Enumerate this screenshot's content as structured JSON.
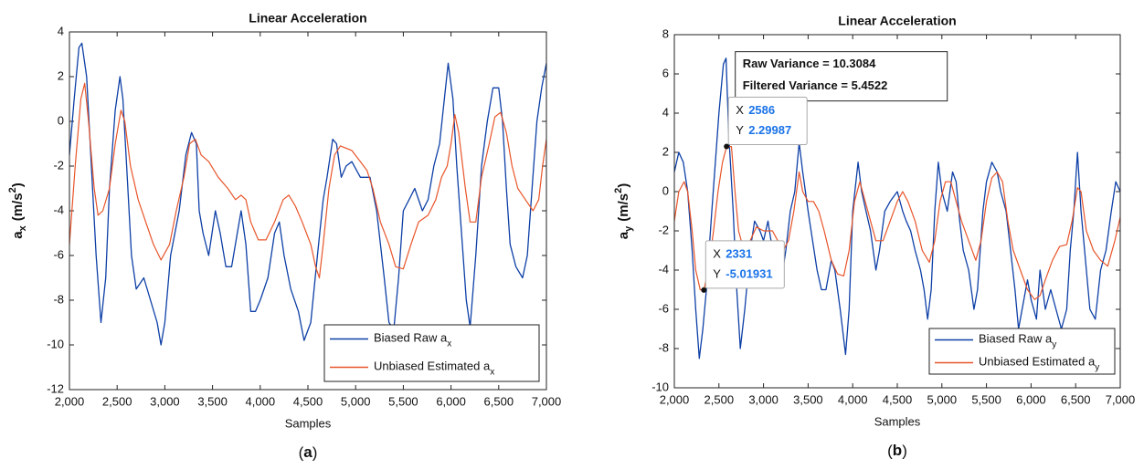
{
  "chart_data": [
    {
      "type": "line",
      "title": "Linear Acceleration",
      "xlabel": "Samples",
      "caption": "a",
      "ylabel": {
        "text": "a",
        "sub": "x",
        "unit": "(m/s",
        "sup": "2",
        "close": ")"
      },
      "xlim": [
        2000,
        7000
      ],
      "xticks": [
        {
          "value": 2000,
          "label": "2,000"
        },
        {
          "value": 2500,
          "label": "2,500"
        },
        {
          "value": 3000,
          "label": "3,000"
        },
        {
          "value": 3500,
          "label": "3,500"
        },
        {
          "value": 4000,
          "label": "4,000"
        },
        {
          "value": 4500,
          "label": "4,500"
        },
        {
          "value": 5000,
          "label": "5,000"
        },
        {
          "value": 5500,
          "label": "5,500"
        },
        {
          "value": 6000,
          "label": "6,000"
        },
        {
          "value": 6500,
          "label": "6,500"
        },
        {
          "value": 7000,
          "label": "7,000"
        }
      ],
      "ylim": [
        -12,
        4
      ],
      "yticks": [
        -12,
        -10,
        -8,
        -6,
        -4,
        -2,
        0,
        2,
        4
      ],
      "legend": "lower right",
      "series": [
        {
          "name": "Biased Raw a",
          "name_sub": "x",
          "color": "#0d3fa6",
          "x": [
            2000,
            2050,
            2100,
            2130,
            2180,
            2230,
            2280,
            2330,
            2380,
            2420,
            2480,
            2530,
            2560,
            2600,
            2650,
            2700,
            2780,
            2850,
            2920,
            2960,
            3000,
            3060,
            3150,
            3220,
            3280,
            3330,
            3360,
            3400,
            3460,
            3530,
            3580,
            3640,
            3700,
            3760,
            3800,
            3850,
            3900,
            3950,
            4000,
            4080,
            4150,
            4200,
            4250,
            4320,
            4400,
            4460,
            4530,
            4600,
            4660,
            4700,
            4760,
            4800,
            4850,
            4900,
            4960,
            5050,
            5150,
            5220,
            5300,
            5350,
            5400,
            5450,
            5500,
            5560,
            5620,
            5700,
            5760,
            5820,
            5880,
            5930,
            5970,
            6020,
            6060,
            6110,
            6160,
            6200,
            6260,
            6320,
            6380,
            6440,
            6500,
            6540,
            6580,
            6620,
            6680,
            6750,
            6800,
            6850,
            6900,
            6950,
            7000
          ],
          "values": [
            -1.5,
            1,
            3.3,
            3.5,
            2,
            -2,
            -6,
            -9,
            -7,
            -3,
            0.5,
            2,
            1,
            -2,
            -6,
            -7.5,
            -7,
            -8,
            -9,
            -10,
            -9,
            -6,
            -4,
            -1.5,
            -0.5,
            -1,
            -4,
            -5,
            -6,
            -4,
            -5,
            -6.5,
            -6.5,
            -5,
            -4,
            -5.5,
            -8.5,
            -8.5,
            -8,
            -7,
            -5,
            -4.5,
            -6,
            -7.5,
            -8.5,
            -9.8,
            -9,
            -6,
            -3.5,
            -2.5,
            -0.8,
            -1,
            -2.5,
            -2,
            -1.8,
            -2.5,
            -2.5,
            -4,
            -7,
            -9,
            -9.3,
            -7,
            -4,
            -3.5,
            -3,
            -4,
            -3.5,
            -2,
            -1,
            1,
            2.6,
            1,
            -2,
            -5,
            -8,
            -9.2,
            -6,
            -2,
            0,
            1.5,
            1.5,
            0,
            -3,
            -5.5,
            -6.5,
            -7,
            -6,
            -3,
            0,
            1.5,
            2.6
          ]
        },
        {
          "name": "Unbiased Estimated a",
          "name_sub": "x",
          "color": "#e8552a",
          "x": [
            2000,
            2060,
            2120,
            2160,
            2200,
            2260,
            2300,
            2350,
            2420,
            2480,
            2540,
            2580,
            2640,
            2720,
            2800,
            2880,
            2960,
            3050,
            3120,
            3200,
            3260,
            3320,
            3380,
            3460,
            3560,
            3660,
            3740,
            3800,
            3850,
            3900,
            3980,
            4060,
            4150,
            4240,
            4300,
            4370,
            4440,
            4530,
            4580,
            4620,
            4660,
            4720,
            4780,
            4840,
            4960,
            5050,
            5120,
            5180,
            5260,
            5350,
            5420,
            5500,
            5580,
            5660,
            5760,
            5840,
            5900,
            5960,
            6000,
            6040,
            6080,
            6150,
            6200,
            6260,
            6320,
            6400,
            6460,
            6520,
            6580,
            6640,
            6700,
            6780,
            6860,
            6920,
            6960,
            7000
          ],
          "values": [
            -5.5,
            -2,
            1,
            1.7,
            0,
            -3,
            -4.2,
            -4,
            -3,
            -1,
            0.5,
            0,
            -2,
            -3.5,
            -4.5,
            -5.5,
            -6.2,
            -5.5,
            -4,
            -2.5,
            -1,
            -0.8,
            -1.5,
            -1.8,
            -2.5,
            -3,
            -3.5,
            -3.3,
            -3.5,
            -4.5,
            -5.3,
            -5.3,
            -4.5,
            -3.5,
            -3.3,
            -3.8,
            -4.5,
            -5.5,
            -6.5,
            -7,
            -5.5,
            -3,
            -1.5,
            -1.1,
            -1.3,
            -1.8,
            -2.2,
            -3,
            -4.5,
            -5.5,
            -6.5,
            -6.6,
            -5.5,
            -4.5,
            -4.2,
            -3.5,
            -2.5,
            -2,
            -1,
            0.3,
            -0.5,
            -3,
            -4.5,
            -4.5,
            -2.5,
            -1,
            0.2,
            0.4,
            -0.5,
            -2,
            -3,
            -3.5,
            -4,
            -3.5,
            -2,
            -0.8
          ]
        }
      ]
    },
    {
      "type": "line",
      "title": "Linear Acceleration",
      "xlabel": "Samples",
      "caption": "b",
      "ylabel": {
        "text": "a",
        "sub": "y",
        "unit": "(m/s",
        "sup": "2",
        "close": ")"
      },
      "xlim": [
        2000,
        7000
      ],
      "xticks": [
        {
          "value": 2000,
          "label": "2,000"
        },
        {
          "value": 2500,
          "label": "2,500"
        },
        {
          "value": 3000,
          "label": "3,000"
        },
        {
          "value": 3500,
          "label": "3,500"
        },
        {
          "value": 4000,
          "label": "4,000"
        },
        {
          "value": 4500,
          "label": "4,500"
        },
        {
          "value": 5000,
          "label": "5,000"
        },
        {
          "value": 5500,
          "label": "5,500"
        },
        {
          "value": 6000,
          "label": "6,000"
        },
        {
          "value": 6500,
          "label": "6,500"
        },
        {
          "value": 7000,
          "label": "7,000"
        }
      ],
      "ylim": [
        -10,
        8
      ],
      "yticks": [
        -10,
        -8,
        -6,
        -4,
        -2,
        0,
        2,
        4,
        6,
        8
      ],
      "legend": "lower right",
      "annotations": [
        "Raw Variance = 10.3084",
        "Filtered Variance = 5.4522"
      ],
      "datatips": [
        {
          "x_label": "X",
          "x": 2586,
          "y_label": "Y",
          "y": 2.29987
        },
        {
          "x_label": "X",
          "x": 2331,
          "y_label": "Y",
          "y": -5.01931
        }
      ],
      "series": [
        {
          "name": "Biased Raw a",
          "name_sub": "y",
          "color": "#0d3fa6",
          "x": [
            2000,
            2050,
            2100,
            2150,
            2200,
            2240,
            2280,
            2320,
            2360,
            2420,
            2460,
            2500,
            2550,
            2580,
            2610,
            2660,
            2700,
            2740,
            2790,
            2850,
            2900,
            2960,
            3000,
            3050,
            3100,
            3150,
            3200,
            3250,
            3300,
            3350,
            3400,
            3440,
            3500,
            3550,
            3600,
            3650,
            3700,
            3760,
            3800,
            3860,
            3920,
            3960,
            4000,
            4060,
            4100,
            4150,
            4200,
            4260,
            4300,
            4360,
            4420,
            4500,
            4560,
            4600,
            4650,
            4700,
            4760,
            4800,
            4840,
            4880,
            4920,
            4960,
            5000,
            5060,
            5120,
            5160,
            5200,
            5240,
            5300,
            5360,
            5400,
            5460,
            5500,
            5560,
            5620,
            5660,
            5720,
            5770,
            5820,
            5860,
            5900,
            5960,
            6000,
            6060,
            6100,
            6160,
            6220,
            6280,
            6340,
            6400,
            6440,
            6480,
            6520,
            6560,
            6600,
            6660,
            6720,
            6780,
            6840,
            6900,
            6950,
            7000
          ],
          "values": [
            1,
            2,
            1.5,
            0,
            -3,
            -6,
            -8.5,
            -7,
            -5,
            -1,
            1.5,
            4,
            6.5,
            6.8,
            3,
            -1,
            -5,
            -8,
            -6,
            -3,
            -1.5,
            -2,
            -2.5,
            -1.5,
            -3,
            -4,
            -4.5,
            -3,
            -1,
            0,
            2.5,
            1,
            -1,
            -2.5,
            -4,
            -5,
            -5,
            -3.5,
            -4,
            -6,
            -8.3,
            -6,
            -1,
            1.5,
            0,
            -1,
            -2,
            -4,
            -3,
            -1,
            -0.5,
            0,
            -1,
            -1.5,
            -2,
            -3,
            -4,
            -5,
            -6.5,
            -5,
            -1,
            1.5,
            0,
            -1,
            1,
            0.5,
            -1.5,
            -3,
            -4,
            -6,
            -5,
            -1,
            0.5,
            1.5,
            1,
            0,
            -1,
            -3,
            -5,
            -7,
            -6,
            -4.5,
            -5.5,
            -6.5,
            -4,
            -6,
            -5,
            -6,
            -7,
            -6,
            -3,
            -1,
            2,
            -1,
            -3,
            -6,
            -6.5,
            -4,
            -3,
            -1,
            0.5,
            0
          ]
        },
        {
          "name": "Unbiased Estimated a",
          "name_sub": "y",
          "color": "#e8552a",
          "x": [
            2000,
            2050,
            2110,
            2150,
            2200,
            2240,
            2290,
            2331,
            2380,
            2440,
            2490,
            2540,
            2586,
            2640,
            2680,
            2720,
            2780,
            2850,
            2920,
            3000,
            3100,
            3160,
            3220,
            3280,
            3340,
            3400,
            3440,
            3500,
            3560,
            3620,
            3680,
            3760,
            3830,
            3900,
            3960,
            4020,
            4080,
            4140,
            4200,
            4260,
            4340,
            4420,
            4500,
            4560,
            4620,
            4700,
            4780,
            4860,
            4920,
            4980,
            5040,
            5100,
            5160,
            5220,
            5300,
            5380,
            5440,
            5500,
            5560,
            5620,
            5680,
            5740,
            5800,
            5880,
            5960,
            6040,
            6100,
            6160,
            6240,
            6320,
            6400,
            6460,
            6520,
            6560,
            6620,
            6700,
            6780,
            6860,
            6940,
            7000
          ],
          "values": [
            -1.5,
            0,
            0.5,
            0,
            -2,
            -4,
            -5,
            -5.02,
            -4,
            -2,
            0,
            1.5,
            2.3,
            2.3,
            0,
            -2,
            -3,
            -2.5,
            -1.8,
            -2,
            -2,
            -2.5,
            -3,
            -2.5,
            -1,
            1,
            0,
            -0.5,
            -0.5,
            -1,
            -2,
            -3.5,
            -4.2,
            -4.3,
            -3,
            -0.5,
            0.5,
            -0.5,
            -1.5,
            -2.5,
            -2.5,
            -1.5,
            -0.5,
            0,
            -0.5,
            -1.5,
            -3,
            -3.6,
            -2.5,
            -0.5,
            0.5,
            0.5,
            -0.5,
            -1.5,
            -2.5,
            -3.5,
            -2.5,
            -0.5,
            0.7,
            1,
            0.5,
            -1.5,
            -3,
            -4,
            -5,
            -5.5,
            -5.3,
            -4.5,
            -3.5,
            -2.8,
            -2.7,
            -1.5,
            0.2,
            0,
            -2,
            -3,
            -3.5,
            -3.8,
            -2.5,
            -1.3
          ]
        }
      ]
    }
  ]
}
